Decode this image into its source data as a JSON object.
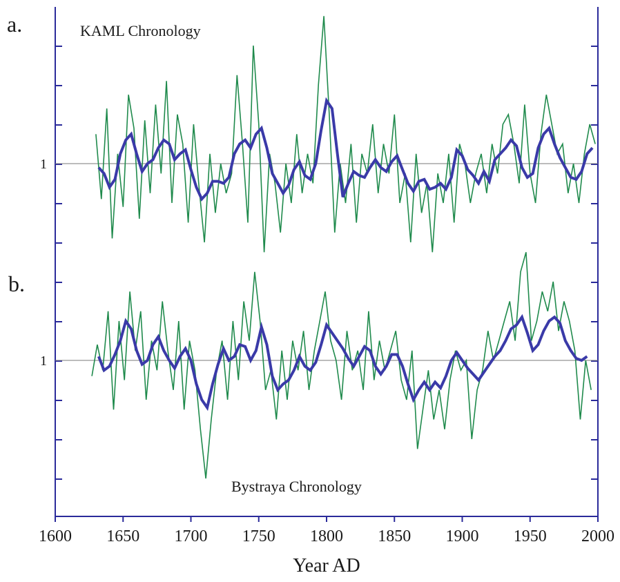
{
  "chart_data": [
    {
      "type": "line",
      "panel_label": "a.",
      "title": "KAML Chronology",
      "reference_label": "1",
      "reference_value": 1,
      "xlim": [
        1600,
        2000
      ],
      "ylim": [
        0.3,
        1.9
      ],
      "colors": {
        "annual": "#1f8a4c",
        "smoothed": "#3a3aa8",
        "reference": "#7a7a7a",
        "axis": "#2a2a9a"
      },
      "series": [
        {
          "x": [
            1630,
            1634,
            1638,
            1642,
            1646,
            1650,
            1654,
            1658,
            1662,
            1666,
            1670,
            1674,
            1678,
            1682,
            1686,
            1690,
            1694,
            1698,
            1702,
            1706,
            1710,
            1714,
            1718,
            1722,
            1726,
            1730,
            1734,
            1738,
            1742,
            1746,
            1750,
            1754,
            1758,
            1762,
            1766,
            1770,
            1774,
            1778,
            1782,
            1786,
            1790,
            1794,
            1798,
            1802,
            1806,
            1810,
            1814,
            1818,
            1822,
            1826,
            1830,
            1834,
            1838,
            1842,
            1846,
            1850,
            1854,
            1858,
            1862,
            1866,
            1870,
            1874,
            1878,
            1882,
            1886,
            1890,
            1894,
            1898,
            1902,
            1906,
            1910,
            1914,
            1918,
            1922,
            1926,
            1930,
            1934,
            1938,
            1942,
            1946,
            1950,
            1954,
            1958,
            1962,
            1966,
            1970,
            1974,
            1978,
            1982,
            1986,
            1990,
            1994,
            1998
          ],
          "values": [
            1.15,
            0.82,
            1.28,
            0.62,
            1.05,
            0.78,
            1.35,
            1.18,
            0.72,
            1.22,
            0.85,
            1.3,
            0.95,
            1.42,
            0.8,
            1.25,
            1.1,
            0.7,
            1.2,
            0.88,
            0.6,
            1.05,
            0.75,
            1.0,
            0.85,
            0.95,
            1.45,
            1.1,
            0.7,
            1.6,
            1.2,
            0.55,
            1.05,
            0.9,
            0.65,
            1.0,
            0.8,
            1.15,
            0.85,
            1.05,
            0.9,
            1.4,
            1.75,
            1.25,
            0.65,
            1.0,
            0.8,
            1.1,
            0.7,
            1.05,
            0.95,
            1.2,
            0.85,
            1.1,
            0.95,
            1.25,
            0.8,
            0.95,
            0.6,
            1.05,
            0.75,
            0.9,
            0.55,
            0.95,
            0.8,
            1.05,
            0.7,
            1.1,
            1.0,
            0.8,
            0.95,
            1.05,
            0.85,
            1.1,
            0.95,
            1.2,
            1.25,
            1.1,
            0.9,
            1.3,
            0.95,
            0.8,
            1.15,
            1.35,
            1.2,
            1.05,
            1.1,
            0.85,
            1.0,
            0.8,
            1.05,
            1.2,
            1.1
          ]
        },
        {
          "x": [
            1632,
            1636,
            1640,
            1644,
            1648,
            1652,
            1656,
            1660,
            1664,
            1668,
            1672,
            1676,
            1680,
            1684,
            1688,
            1692,
            1696,
            1700,
            1704,
            1708,
            1712,
            1716,
            1720,
            1724,
            1728,
            1732,
            1736,
            1740,
            1744,
            1748,
            1752,
            1756,
            1760,
            1764,
            1768,
            1772,
            1776,
            1780,
            1784,
            1788,
            1792,
            1796,
            1800,
            1804,
            1808,
            1812,
            1816,
            1820,
            1824,
            1828,
            1832,
            1836,
            1840,
            1844,
            1848,
            1852,
            1856,
            1860,
            1864,
            1868,
            1872,
            1876,
            1880,
            1884,
            1888,
            1892,
            1896,
            1900,
            1904,
            1908,
            1912,
            1916,
            1920,
            1924,
            1928,
            1932,
            1936,
            1940,
            1944,
            1948,
            1952,
            1956,
            1960,
            1964,
            1968,
            1972,
            1976,
            1980,
            1984,
            1988,
            1992,
            1996
          ],
          "values": [
            0.98,
            0.95,
            0.88,
            0.92,
            1.05,
            1.12,
            1.15,
            1.05,
            0.96,
            1.0,
            1.02,
            1.08,
            1.12,
            1.1,
            1.02,
            1.05,
            1.07,
            0.97,
            0.88,
            0.82,
            0.85,
            0.91,
            0.91,
            0.9,
            0.93,
            1.05,
            1.1,
            1.12,
            1.08,
            1.15,
            1.18,
            1.08,
            0.95,
            0.9,
            0.85,
            0.89,
            0.97,
            1.01,
            0.94,
            0.92,
            1.0,
            1.17,
            1.32,
            1.28,
            1.05,
            0.83,
            0.9,
            0.96,
            0.94,
            0.93,
            0.98,
            1.02,
            0.98,
            0.96,
            1.01,
            1.04,
            0.97,
            0.9,
            0.86,
            0.91,
            0.92,
            0.87,
            0.88,
            0.9,
            0.87,
            0.93,
            1.07,
            1.04,
            0.97,
            0.94,
            0.9,
            0.96,
            0.91,
            1.02,
            1.05,
            1.08,
            1.12,
            1.09,
            0.98,
            0.93,
            0.95,
            1.08,
            1.15,
            1.18,
            1.1,
            1.03,
            0.98,
            0.93,
            0.92,
            0.96,
            1.05,
            1.08
          ]
        }
      ]
    },
    {
      "type": "line",
      "panel_label": "b.",
      "title": "Bystraya Chronology",
      "reference_label": "1",
      "reference_value": 1,
      "xlim": [
        1600,
        2000
      ],
      "ylim": [
        0.3,
        1.9
      ],
      "colors": {
        "annual": "#1f8a4c",
        "smoothed": "#3a3aa8",
        "reference": "#7a7a7a",
        "axis": "#2a2a9a"
      },
      "series": [
        {
          "x": [
            1627,
            1631,
            1635,
            1639,
            1643,
            1647,
            1651,
            1655,
            1659,
            1663,
            1667,
            1671,
            1675,
            1679,
            1683,
            1687,
            1691,
            1695,
            1699,
            1703,
            1707,
            1711,
            1715,
            1719,
            1723,
            1727,
            1731,
            1735,
            1739,
            1743,
            1747,
            1751,
            1755,
            1759,
            1763,
            1767,
            1771,
            1775,
            1779,
            1783,
            1787,
            1791,
            1795,
            1799,
            1803,
            1807,
            1811,
            1815,
            1819,
            1823,
            1827,
            1831,
            1835,
            1839,
            1843,
            1847,
            1851,
            1855,
            1859,
            1863,
            1867,
            1871,
            1875,
            1879,
            1883,
            1887,
            1891,
            1895,
            1899,
            1903,
            1907,
            1911,
            1915,
            1919,
            1923,
            1927,
            1931,
            1935,
            1939,
            1943,
            1947,
            1951,
            1955,
            1959,
            1963,
            1967,
            1971,
            1975,
            1979,
            1983,
            1987,
            1991,
            1995
          ],
          "values": [
            0.92,
            1.08,
            0.95,
            1.25,
            0.75,
            1.2,
            0.9,
            1.35,
            1.05,
            1.25,
            0.8,
            1.1,
            0.95,
            1.3,
            1.05,
            0.85,
            1.2,
            0.75,
            1.1,
            0.95,
            0.65,
            0.4,
            0.7,
            0.95,
            1.1,
            0.8,
            1.2,
            0.9,
            1.3,
            1.1,
            1.45,
            1.2,
            0.85,
            0.95,
            0.7,
            1.05,
            0.8,
            1.1,
            0.95,
            1.15,
            0.85,
            1.05,
            1.2,
            1.35,
            1.1,
            1.0,
            0.8,
            1.15,
            0.95,
            1.05,
            0.85,
            1.25,
            0.9,
            1.1,
            0.95,
            1.05,
            1.15,
            0.9,
            0.8,
            1.05,
            0.55,
            0.75,
            0.95,
            0.7,
            0.85,
            0.65,
            0.9,
            1.05,
            0.95,
            1.0,
            0.6,
            0.85,
            0.95,
            1.15,
            1.0,
            1.1,
            1.2,
            1.3,
            1.1,
            1.45,
            1.55,
            1.1,
            1.2,
            1.35,
            1.25,
            1.4,
            1.15,
            1.3,
            1.2,
            1.05,
            0.7,
            1.0,
            0.85
          ]
        },
        {
          "x": [
            1632,
            1636,
            1640,
            1644,
            1648,
            1652,
            1656,
            1660,
            1664,
            1668,
            1672,
            1676,
            1680,
            1684,
            1688,
            1692,
            1696,
            1700,
            1704,
            1708,
            1712,
            1716,
            1720,
            1724,
            1728,
            1732,
            1736,
            1740,
            1744,
            1748,
            1752,
            1756,
            1760,
            1764,
            1768,
            1772,
            1776,
            1780,
            1784,
            1788,
            1792,
            1796,
            1800,
            1804,
            1808,
            1812,
            1816,
            1820,
            1824,
            1828,
            1832,
            1836,
            1840,
            1844,
            1848,
            1852,
            1856,
            1860,
            1864,
            1868,
            1872,
            1876,
            1880,
            1884,
            1888,
            1892,
            1896,
            1900,
            1904,
            1908,
            1912,
            1916,
            1920,
            1924,
            1928,
            1932,
            1936,
            1940,
            1944,
            1948,
            1952,
            1956,
            1960,
            1964,
            1968,
            1972,
            1976,
            1980,
            1984,
            1988,
            1992
          ],
          "values": [
            1.02,
            0.95,
            0.97,
            1.03,
            1.1,
            1.2,
            1.16,
            1.05,
            0.98,
            1.0,
            1.08,
            1.12,
            1.05,
            1.0,
            0.96,
            1.02,
            1.06,
            1.0,
            0.88,
            0.8,
            0.76,
            0.88,
            0.98,
            1.06,
            1.0,
            1.02,
            1.08,
            1.07,
            1.0,
            1.05,
            1.17,
            1.08,
            0.92,
            0.85,
            0.88,
            0.9,
            0.95,
            1.02,
            0.97,
            0.95,
            0.99,
            1.08,
            1.18,
            1.14,
            1.1,
            1.06,
            1.01,
            0.97,
            1.02,
            1.07,
            1.05,
            0.97,
            0.93,
            0.97,
            1.03,
            1.03,
            0.97,
            0.88,
            0.8,
            0.85,
            0.89,
            0.85,
            0.89,
            0.86,
            0.92,
            1.0,
            1.04,
            1.0,
            0.96,
            0.93,
            0.9,
            0.94,
            0.98,
            1.02,
            1.05,
            1.1,
            1.16,
            1.18,
            1.22,
            1.14,
            1.05,
            1.08,
            1.15,
            1.2,
            1.22,
            1.19,
            1.1,
            1.05,
            1.01,
            1.0,
            1.02
          ]
        }
      ]
    }
  ],
  "x_axis": {
    "label": "Year AD",
    "ticks": [
      "1600",
      "1650",
      "1700",
      "1750",
      "1800",
      "1850",
      "1900",
      "1950",
      "2000"
    ],
    "tick_values": [
      1600,
      1650,
      1700,
      1750,
      1800,
      1850,
      1900,
      1950,
      2000
    ]
  }
}
